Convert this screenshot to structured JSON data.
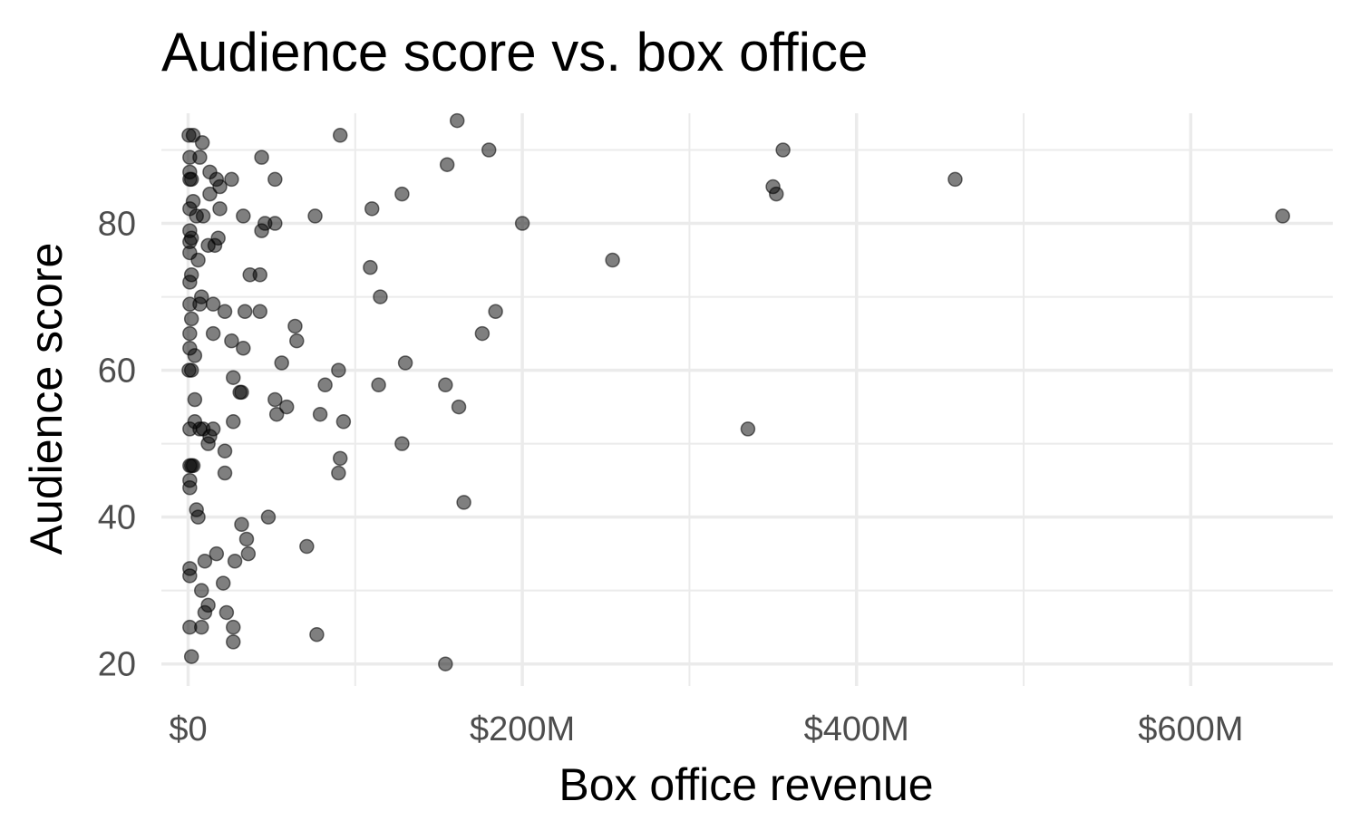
{
  "chart_data": {
    "type": "scatter",
    "title": "Audience score vs. box office",
    "xlabel": "Box office revenue",
    "ylabel": "Audience score",
    "xlim": [
      -16000000,
      685000000
    ],
    "ylim": [
      17,
      95
    ],
    "x_ticks": [
      {
        "value": 0,
        "label": "$0"
      },
      {
        "value": 200000000,
        "label": "$200M"
      },
      {
        "value": 400000000,
        "label": "$400M"
      },
      {
        "value": 600000000,
        "label": "$600M"
      }
    ],
    "x_minor_ticks": [
      100000000,
      300000000,
      500000000
    ],
    "y_ticks": [
      {
        "value": 20,
        "label": "20"
      },
      {
        "value": 40,
        "label": "40"
      },
      {
        "value": 60,
        "label": "60"
      },
      {
        "value": 80,
        "label": "80"
      }
    ],
    "y_minor_ticks": [
      30,
      50,
      70,
      90
    ],
    "grid": true,
    "legend": "none",
    "point_color": "#000000",
    "point_alpha": 0.5,
    "points": [
      [
        0.5,
        92
      ],
      [
        3,
        92
      ],
      [
        8.5,
        91
      ],
      [
        91,
        92
      ],
      [
        161,
        94
      ],
      [
        180,
        90
      ],
      [
        356,
        90
      ],
      [
        44,
        89
      ],
      [
        1,
        89
      ],
      [
        7,
        89
      ],
      [
        155,
        88
      ],
      [
        1,
        87
      ],
      [
        13,
        87
      ],
      [
        1,
        86
      ],
      [
        2,
        86
      ],
      [
        17,
        86
      ],
      [
        26,
        86
      ],
      [
        52,
        86
      ],
      [
        459,
        86
      ],
      [
        19,
        85
      ],
      [
        350,
        85
      ],
      [
        13,
        84
      ],
      [
        128,
        84
      ],
      [
        352,
        84
      ],
      [
        3,
        83
      ],
      [
        1,
        82
      ],
      [
        19,
        82
      ],
      [
        110,
        82
      ],
      [
        5,
        81
      ],
      [
        9,
        81
      ],
      [
        33,
        81
      ],
      [
        76,
        81
      ],
      [
        655,
        81
      ],
      [
        46,
        80
      ],
      [
        52,
        80
      ],
      [
        200,
        80
      ],
      [
        44,
        79
      ],
      [
        1,
        79
      ],
      [
        2,
        78
      ],
      [
        18,
        78
      ],
      [
        1,
        77.5
      ],
      [
        12,
        77
      ],
      [
        16,
        77
      ],
      [
        1,
        76
      ],
      [
        6,
        75
      ],
      [
        254,
        75
      ],
      [
        37,
        73
      ],
      [
        43,
        73
      ],
      [
        2,
        73
      ],
      [
        1,
        72
      ],
      [
        109,
        74
      ],
      [
        8,
        70
      ],
      [
        115,
        70
      ],
      [
        1,
        69
      ],
      [
        7,
        69
      ],
      [
        15,
        69
      ],
      [
        22,
        68
      ],
      [
        34,
        68
      ],
      [
        43,
        68
      ],
      [
        184,
        68
      ],
      [
        2,
        67
      ],
      [
        64,
        66
      ],
      [
        1,
        65
      ],
      [
        15,
        65
      ],
      [
        65,
        64
      ],
      [
        26,
        64
      ],
      [
        176,
        65
      ],
      [
        1,
        63
      ],
      [
        33,
        63
      ],
      [
        4,
        62
      ],
      [
        56,
        61
      ],
      [
        130,
        61
      ],
      [
        0.5,
        60
      ],
      [
        2,
        60
      ],
      [
        90,
        60
      ],
      [
        27,
        59
      ],
      [
        82,
        58
      ],
      [
        114,
        58
      ],
      [
        154,
        58
      ],
      [
        31,
        57
      ],
      [
        32,
        57
      ],
      [
        4,
        56
      ],
      [
        52,
        56
      ],
      [
        59,
        55
      ],
      [
        162,
        55
      ],
      [
        53,
        54
      ],
      [
        79,
        54
      ],
      [
        93,
        53
      ],
      [
        4,
        53
      ],
      [
        27,
        53
      ],
      [
        1,
        52
      ],
      [
        7,
        52
      ],
      [
        9,
        52
      ],
      [
        15,
        52
      ],
      [
        13,
        51
      ],
      [
        335,
        52
      ],
      [
        12,
        50
      ],
      [
        128,
        50
      ],
      [
        22,
        49
      ],
      [
        91,
        48
      ],
      [
        1,
        47
      ],
      [
        2,
        47
      ],
      [
        3,
        47
      ],
      [
        22,
        46
      ],
      [
        90,
        46
      ],
      [
        1,
        45
      ],
      [
        1,
        44
      ],
      [
        165,
        42
      ],
      [
        5,
        41
      ],
      [
        6,
        40
      ],
      [
        48,
        40
      ],
      [
        32,
        39
      ],
      [
        35,
        37
      ],
      [
        71,
        36
      ],
      [
        17,
        35
      ],
      [
        36,
        35
      ],
      [
        10,
        34
      ],
      [
        28,
        34
      ],
      [
        1,
        33
      ],
      [
        1,
        32
      ],
      [
        21,
        31
      ],
      [
        8,
        30
      ],
      [
        12,
        28
      ],
      [
        10,
        27
      ],
      [
        23,
        27
      ],
      [
        1,
        25
      ],
      [
        8,
        25
      ],
      [
        27,
        25
      ],
      [
        77,
        24
      ],
      [
        27,
        23
      ],
      [
        2,
        21
      ],
      [
        154,
        20
      ]
    ],
    "points_units": "[x in $ millions, audience score]"
  }
}
